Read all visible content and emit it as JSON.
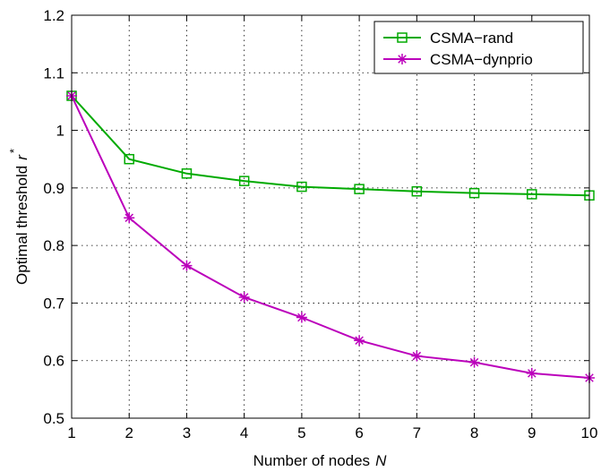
{
  "chart_data": {
    "type": "line",
    "title": "",
    "xlabel": "Number of nodes",
    "xlabel_symbol": "N",
    "ylabel": "Optimal threshold",
    "ylabel_symbol": "r",
    "ylabel_superscript": "*",
    "xlim": [
      1,
      10
    ],
    "ylim": [
      0.5,
      1.2
    ],
    "xticks": [
      "1",
      "2",
      "3",
      "4",
      "5",
      "6",
      "7",
      "8",
      "9",
      "10"
    ],
    "yticks": [
      "0.5",
      "0.6",
      "0.7",
      "0.8",
      "0.9",
      "1",
      "1.1",
      "1.2"
    ],
    "grid": true,
    "legend_position": "top-right",
    "x": [
      1,
      2,
      3,
      4,
      5,
      6,
      7,
      8,
      9,
      10
    ],
    "series": [
      {
        "name": "CSMA−rand",
        "color": "#00aa00",
        "marker": "square",
        "values": [
          1.06,
          0.95,
          0.925,
          0.912,
          0.902,
          0.898,
          0.894,
          0.891,
          0.889,
          0.887
        ]
      },
      {
        "name": "CSMA−dynprio",
        "color": "#bb00bb",
        "marker": "asterisk",
        "values": [
          1.06,
          0.848,
          0.765,
          0.71,
          0.675,
          0.635,
          0.608,
          0.597,
          0.578,
          0.57
        ]
      }
    ]
  }
}
